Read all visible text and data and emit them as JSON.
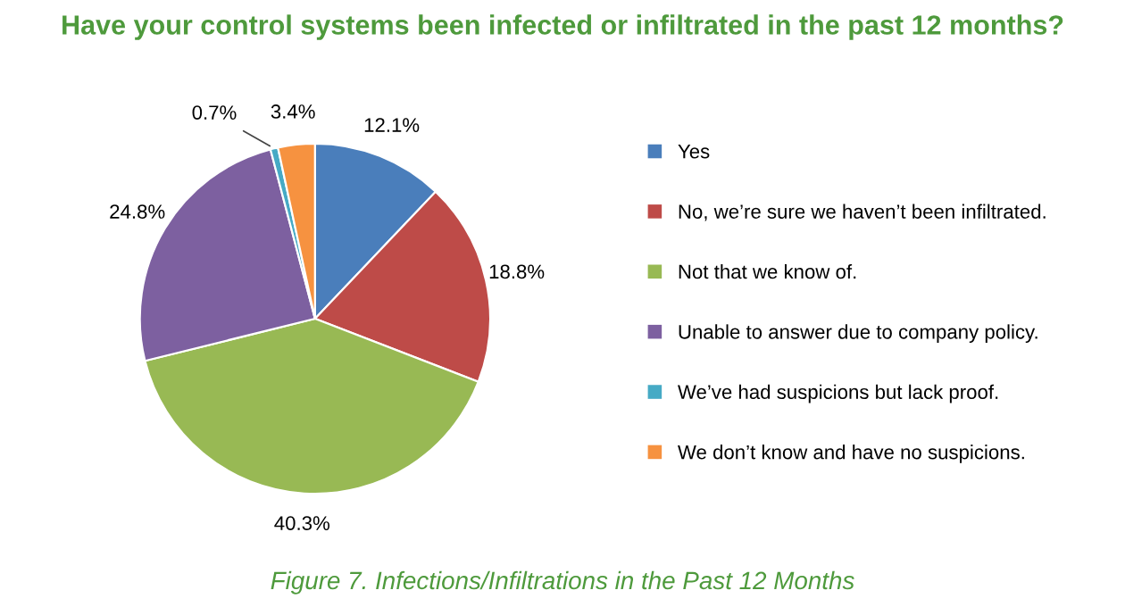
{
  "chart_data": {
    "type": "pie",
    "title": "Have your control systems been infected or infiltrated in the past 12 months?",
    "categories": [
      "Yes",
      "No, we’re sure we haven’t been infiltrated.",
      "Not that we know of.",
      "Unable to answer due to company policy.",
      "We’ve had suspicions but lack proof.",
      "We don’t know and have no suspicions."
    ],
    "values": [
      12.1,
      18.8,
      40.3,
      24.8,
      0.7,
      3.4
    ],
    "colors": [
      "#4a7ebb",
      "#be4b48",
      "#98b954",
      "#7d60a0",
      "#46aac5",
      "#f69240"
    ],
    "value_labels": [
      "12.1%",
      "18.8%",
      "40.3%",
      "24.8%",
      "0.7%",
      "3.4%"
    ],
    "legend": "right",
    "annotations": [
      "Figure 7. Infections/Infiltrations in the Past 12 Months"
    ]
  }
}
